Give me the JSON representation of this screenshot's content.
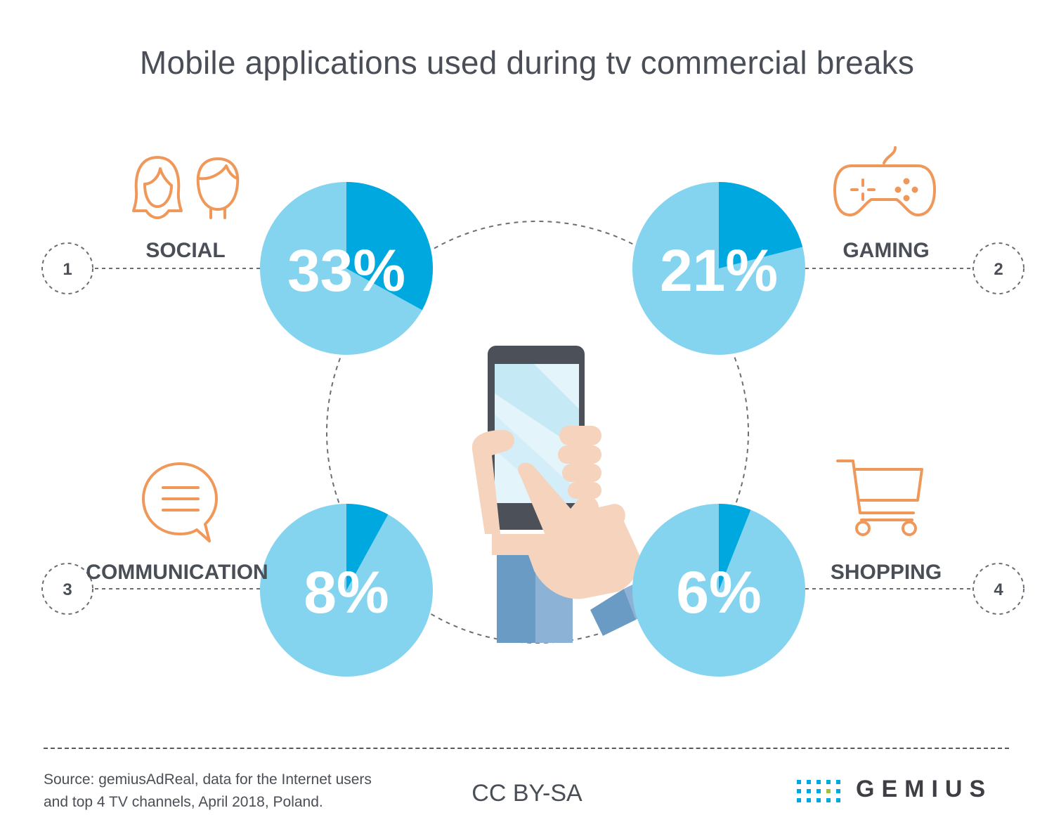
{
  "title": "Mobile applications used during tv commercial breaks",
  "chart_data": {
    "type": "pie",
    "categories": [
      "SOCIAL",
      "GAMING",
      "COMMUNICATION",
      "SHOPPING"
    ],
    "values": [
      33,
      21,
      8,
      6
    ],
    "labels": [
      "33%",
      "21%",
      "8%",
      "6%"
    ],
    "numbers": [
      "1",
      "2",
      "3",
      "4"
    ],
    "unit": "%"
  },
  "colors": {
    "slice_highlight": "#00a8e0",
    "slice_rest": "#84d4f0",
    "icon_orange": "#f0975a",
    "text_dark": "#4a4f57"
  },
  "icons": [
    "people-icon",
    "gamepad-icon",
    "speech-bubble-icon",
    "shopping-cart-icon"
  ],
  "footer": {
    "source_line1": "Source: gemiusAdReal, data for the Internet users",
    "source_line2": "and top 4 TV channels, April 2018, Poland.",
    "license": "CC BY-SA",
    "brand": "GEMIUS"
  }
}
